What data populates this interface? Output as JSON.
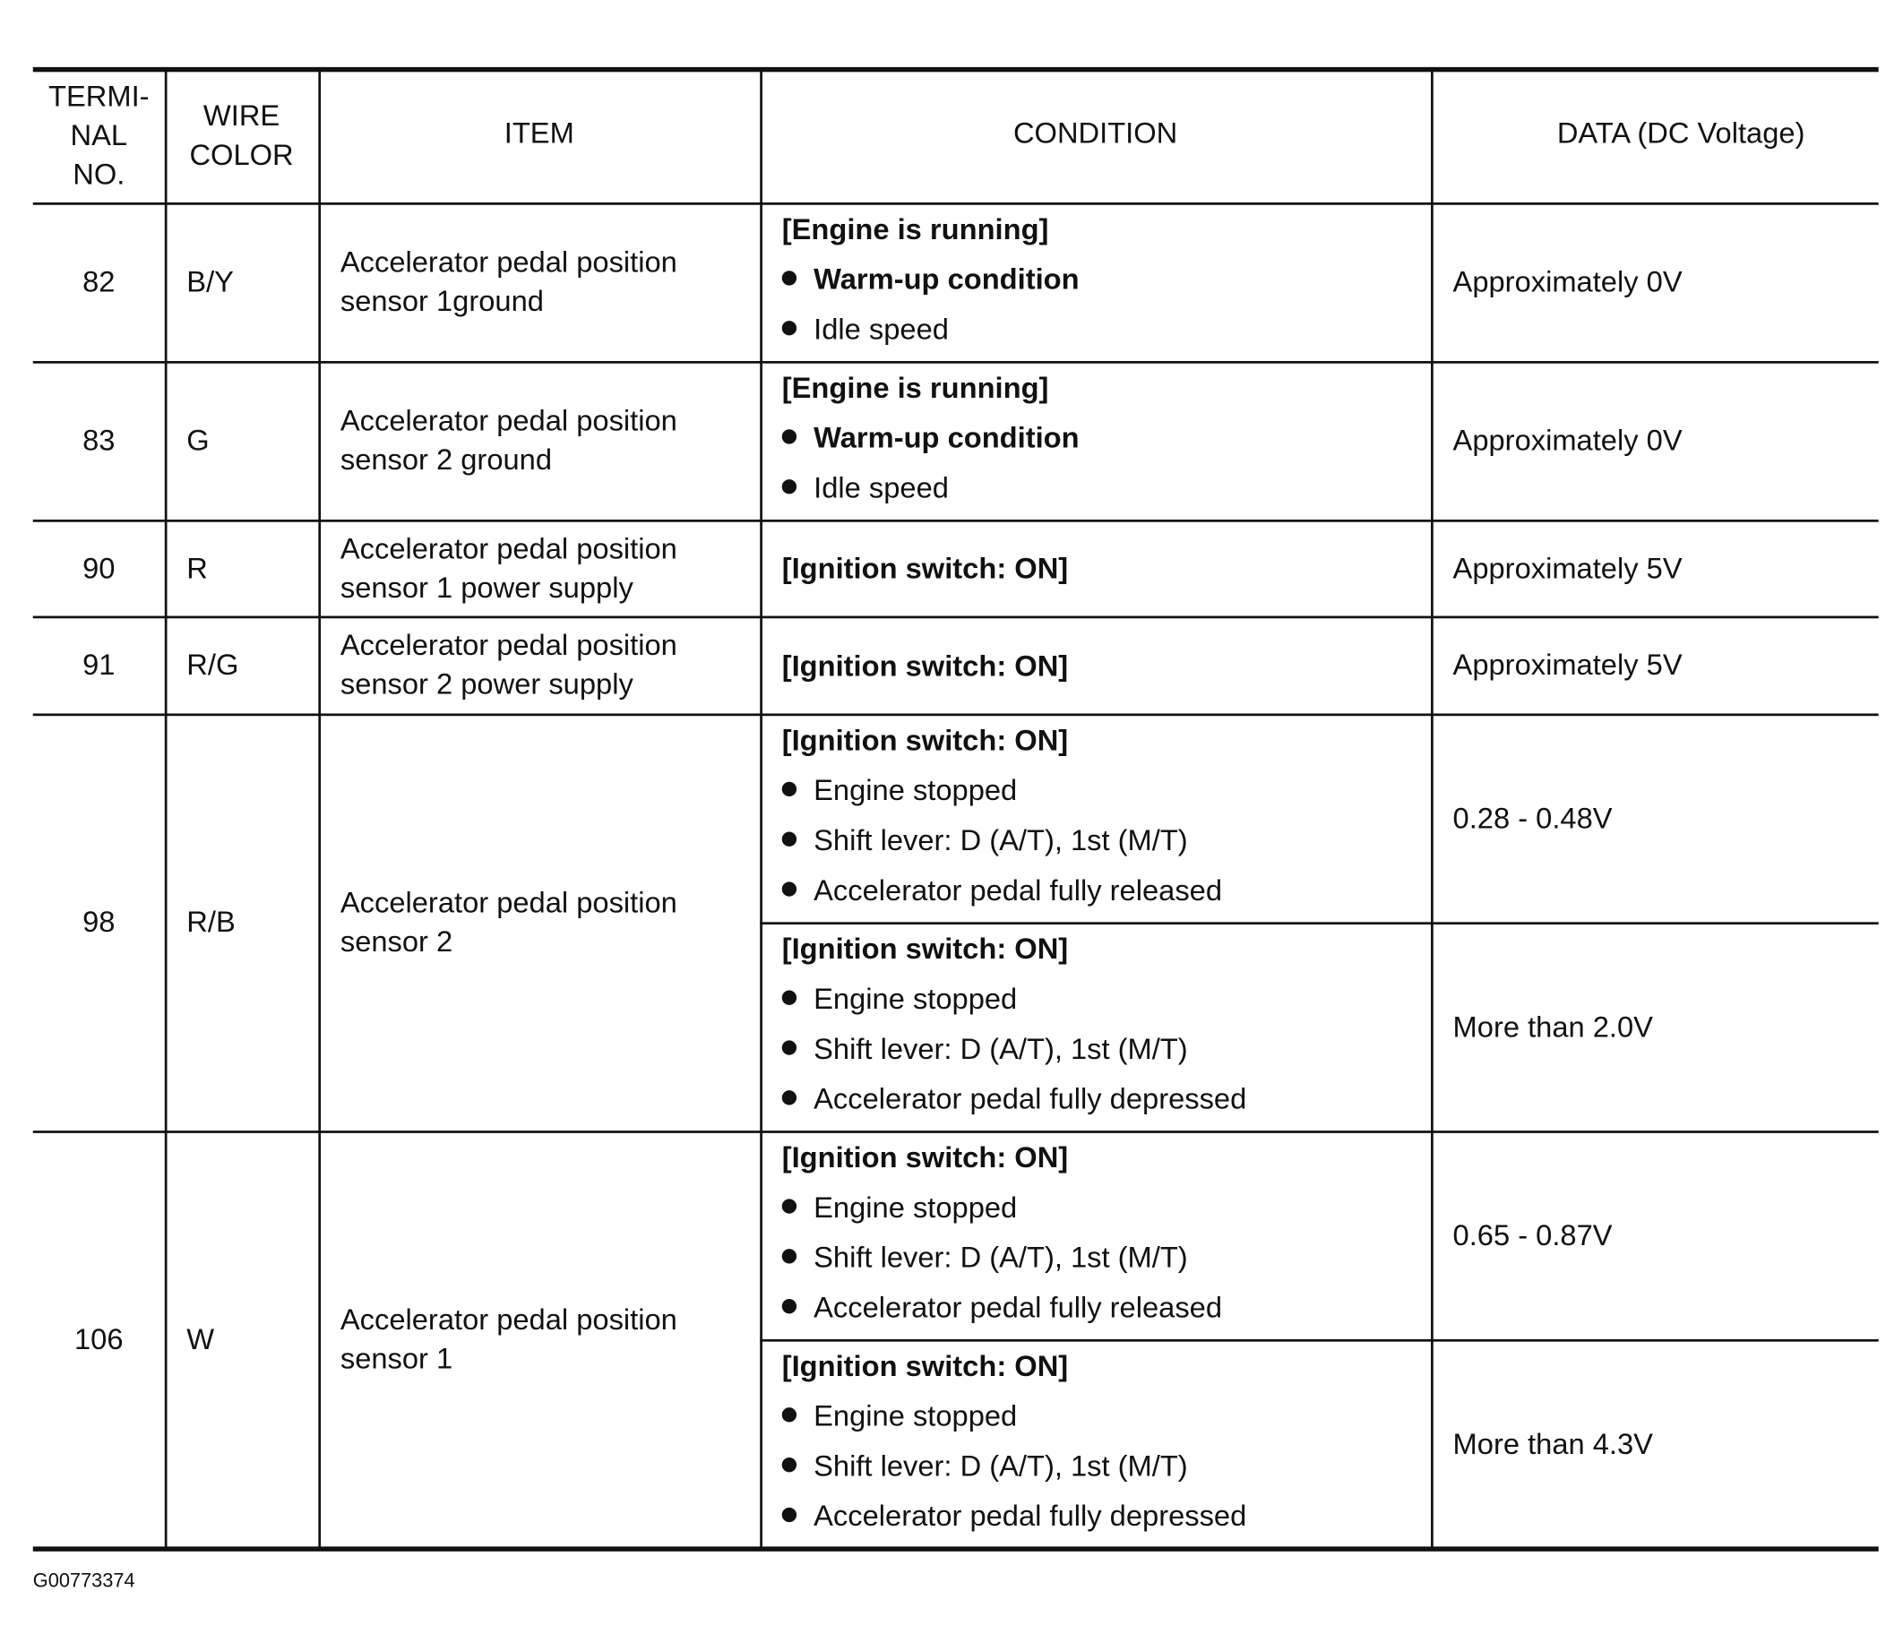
{
  "header": {
    "terminal": "TERMI-\nNAL\nNO.",
    "wire": "WIRE\nCOLOR",
    "item": "ITEM",
    "condition": "CONDITION",
    "data": "DATA (DC Voltage)"
  },
  "rows": [
    {
      "terminal": "82",
      "wire": "B/Y",
      "item": "Accelerator pedal position\nsensor 1ground",
      "conditions": [
        {
          "title": "[Engine is running]",
          "bullets": [
            {
              "text": "Warm-up condition",
              "bold": true
            },
            {
              "text": "Idle speed",
              "bold": false
            }
          ],
          "data": "Approximately 0V"
        }
      ]
    },
    {
      "terminal": "83",
      "wire": "G",
      "item": "Accelerator pedal position\nsensor 2 ground",
      "conditions": [
        {
          "title": "[Engine is running]",
          "bullets": [
            {
              "text": "Warm-up condition",
              "bold": true
            },
            {
              "text": "Idle speed",
              "bold": false
            }
          ],
          "data": "Approximately 0V"
        }
      ]
    },
    {
      "terminal": "90",
      "wire": "R",
      "item": "Accelerator pedal position\nsensor 1 power supply",
      "conditions": [
        {
          "title": "[Ignition switch: ON]",
          "bullets": [],
          "data": "Approximately 5V"
        }
      ]
    },
    {
      "terminal": "91",
      "wire": "R/G",
      "item": "Accelerator pedal position\nsensor 2 power supply",
      "conditions": [
        {
          "title": "[Ignition switch: ON]",
          "bullets": [],
          "data": "Approximately 5V"
        }
      ]
    },
    {
      "terminal": "98",
      "wire": "R/B",
      "item": "Accelerator pedal position\nsensor 2",
      "conditions": [
        {
          "title": "[Ignition switch: ON]",
          "bullets": [
            {
              "text": "Engine stopped"
            },
            {
              "text": "Shift lever: D (A/T), 1st (M/T)"
            },
            {
              "text": "Accelerator pedal fully released"
            }
          ],
          "data": "0.28 - 0.48V"
        },
        {
          "title": "[Ignition switch: ON]",
          "bullets": [
            {
              "text": "Engine stopped"
            },
            {
              "text": "Shift lever: D (A/T), 1st (M/T)"
            },
            {
              "text": "Accelerator pedal fully depressed"
            }
          ],
          "data": "More than 2.0V"
        }
      ]
    },
    {
      "terminal": "106",
      "wire": "W",
      "item": "Accelerator pedal position\nsensor 1",
      "conditions": [
        {
          "title": "[Ignition switch: ON]",
          "bullets": [
            {
              "text": "Engine stopped"
            },
            {
              "text": "Shift lever: D (A/T), 1st (M/T)"
            },
            {
              "text": "Accelerator pedal fully released"
            }
          ],
          "data": "0.65 - 0.87V"
        },
        {
          "title": "[Ignition switch: ON]",
          "bullets": [
            {
              "text": "Engine stopped"
            },
            {
              "text": "Shift lever: D (A/T), 1st (M/T)"
            },
            {
              "text": "Accelerator pedal fully depressed"
            }
          ],
          "data": "More than 4.3V"
        }
      ]
    }
  ],
  "footer": {
    "figure_id": "G00773374"
  }
}
